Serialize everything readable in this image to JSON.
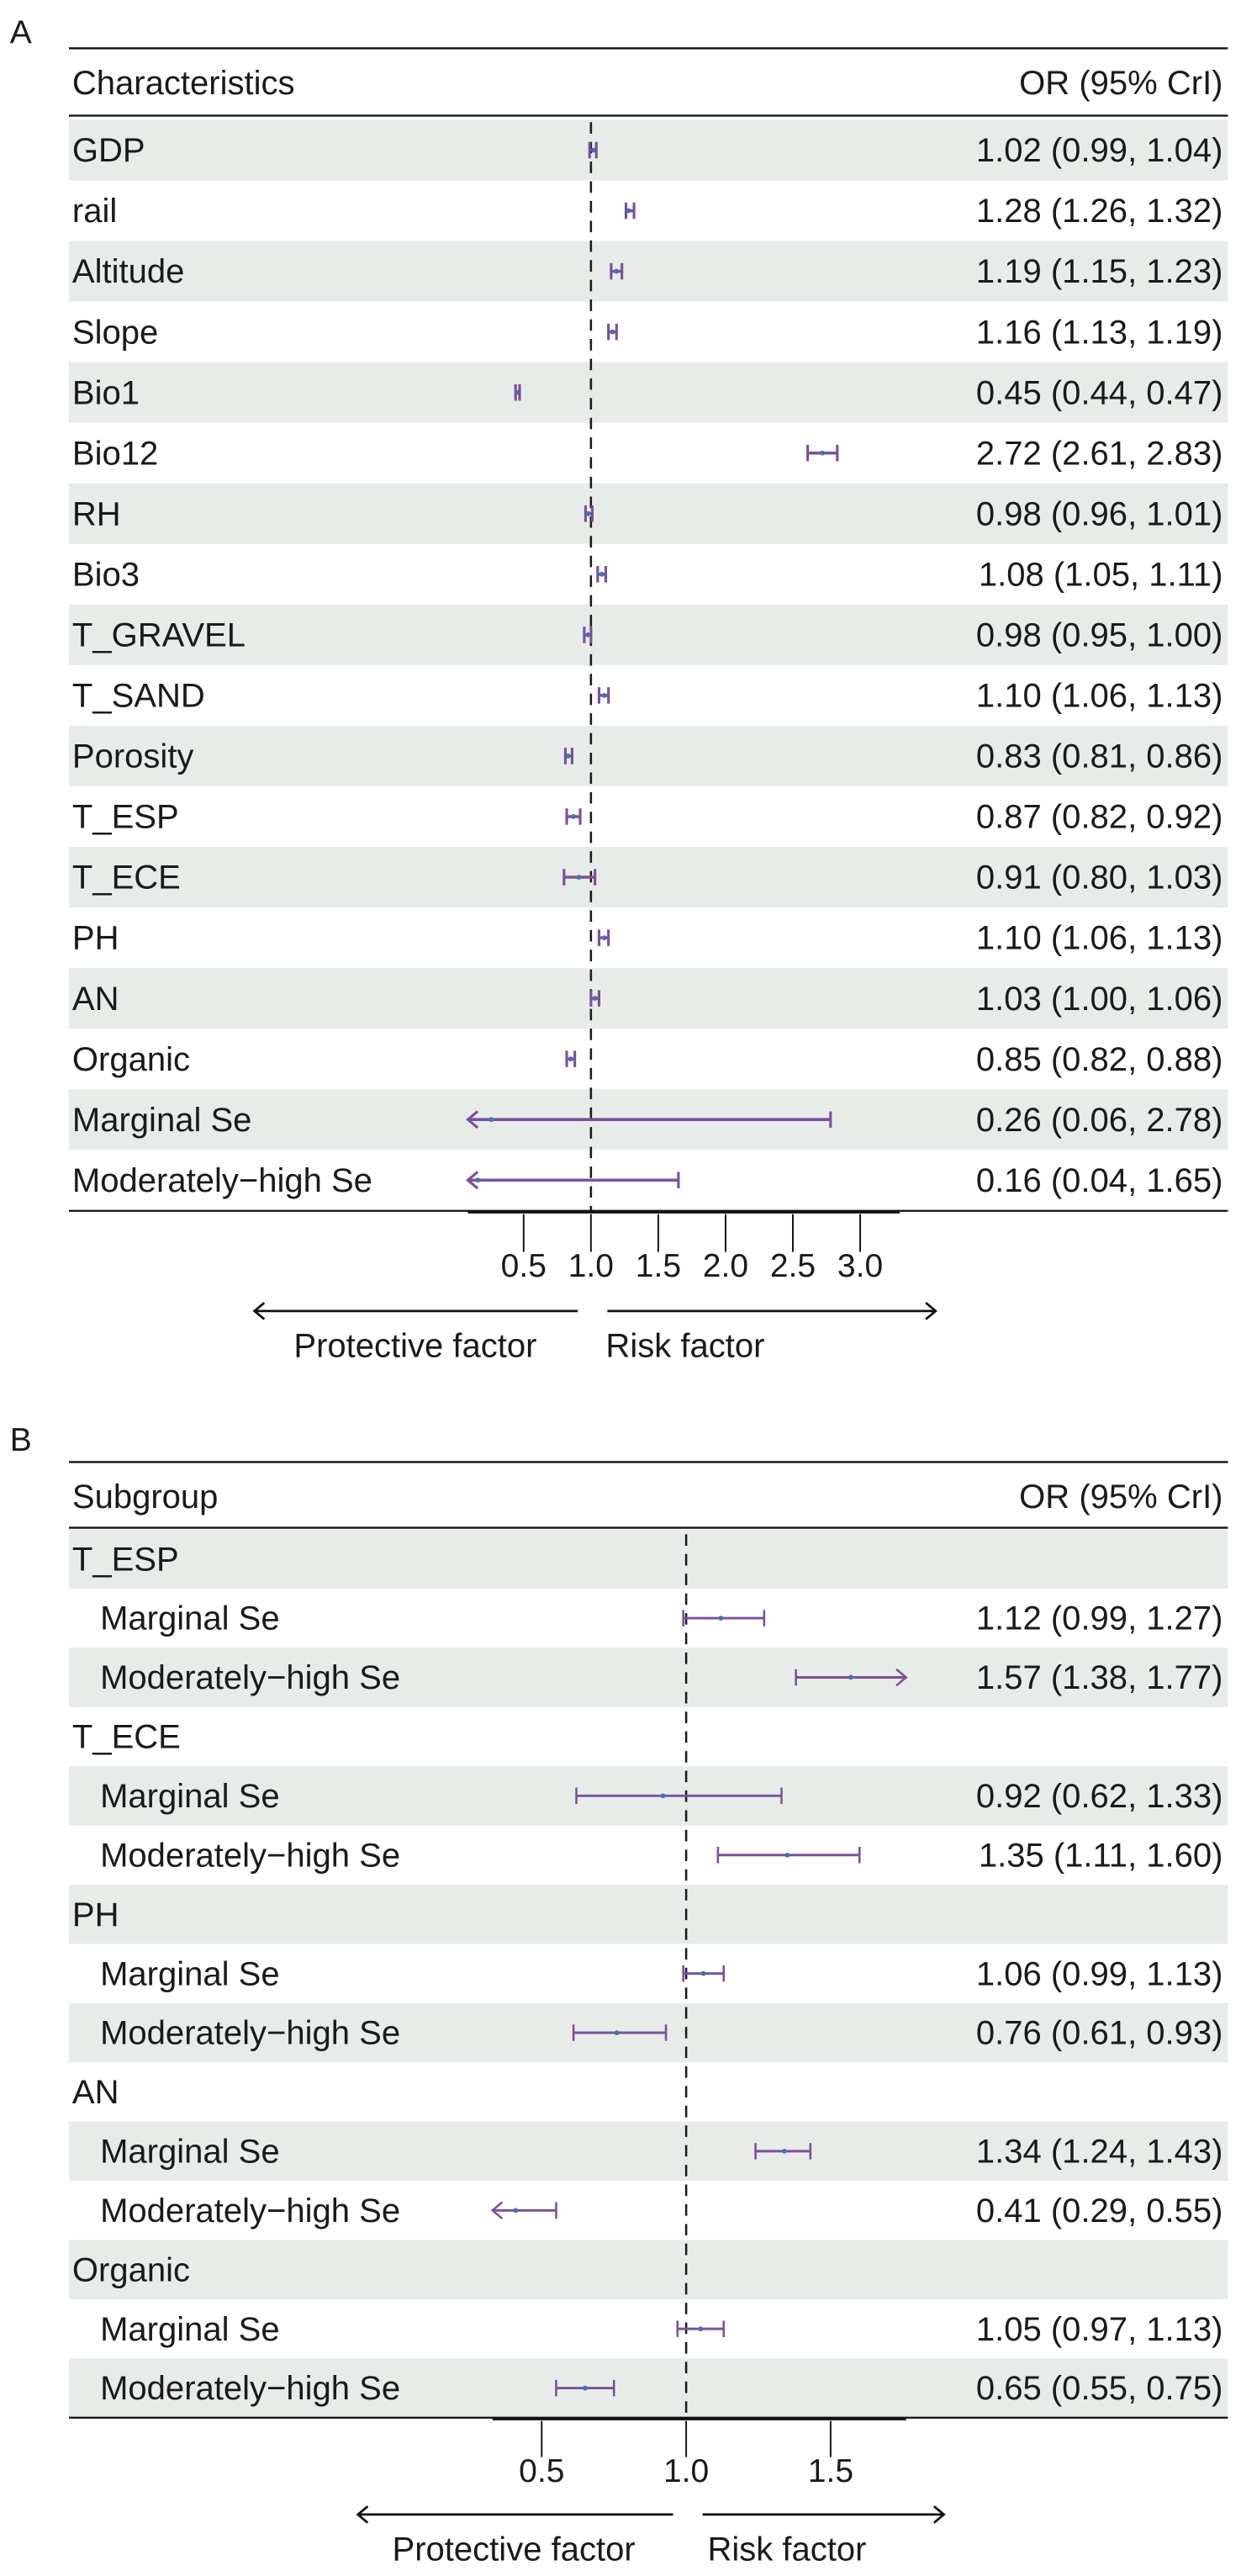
{
  "colors": {
    "ci": "#7b4f9e",
    "point": "#4a6fb0",
    "shade": "#e8ece9",
    "ref": "#1a1a1a"
  },
  "chart_data": [
    {
      "type": "forest",
      "panel": "A",
      "header_left": "Characteristics",
      "header_right": "OR (95% CrI)",
      "xlim": [
        0.085,
        3.29
      ],
      "ref_line": 1.0,
      "ticks": [
        "0.5",
        "1.0",
        "1.5",
        "2.0",
        "2.5",
        "3.0"
      ],
      "tick_values": [
        0.5,
        1.0,
        1.5,
        2.0,
        2.5,
        3.0
      ],
      "left_arrow_label": "Protective factor",
      "right_arrow_label": "Risk factor",
      "rows": [
        {
          "label": "GDP",
          "or": 1.02,
          "lo": 0.99,
          "hi": 1.04,
          "text": "1.02 (0.99, 1.04)"
        },
        {
          "label": "rail",
          "or": 1.28,
          "lo": 1.26,
          "hi": 1.32,
          "text": "1.28 (1.26, 1.32)"
        },
        {
          "label": "Altitude",
          "or": 1.19,
          "lo": 1.15,
          "hi": 1.23,
          "text": "1.19 (1.15, 1.23)"
        },
        {
          "label": "Slope",
          "or": 1.16,
          "lo": 1.13,
          "hi": 1.19,
          "text": "1.16 (1.13, 1.19)"
        },
        {
          "label": "Bio1",
          "or": 0.45,
          "lo": 0.44,
          "hi": 0.47,
          "text": "0.45 (0.44, 0.47)"
        },
        {
          "label": "Bio12",
          "or": 2.72,
          "lo": 2.61,
          "hi": 2.83,
          "text": "2.72 (2.61, 2.83)"
        },
        {
          "label": "RH",
          "or": 0.98,
          "lo": 0.96,
          "hi": 1.01,
          "text": "0.98 (0.96, 1.01)"
        },
        {
          "label": "Bio3",
          "or": 1.08,
          "lo": 1.05,
          "hi": 1.11,
          "text": "1.08 (1.05, 1.11)"
        },
        {
          "label": "T_GRAVEL",
          "or": 0.98,
          "lo": 0.95,
          "hi": 1.0,
          "text": "0.98 (0.95, 1.00)"
        },
        {
          "label": "T_SAND",
          "or": 1.1,
          "lo": 1.06,
          "hi": 1.13,
          "text": "1.10 (1.06, 1.13)"
        },
        {
          "label": "Porosity",
          "or": 0.83,
          "lo": 0.81,
          "hi": 0.86,
          "text": "0.83 (0.81, 0.86)"
        },
        {
          "label": "T_ESP",
          "or": 0.87,
          "lo": 0.82,
          "hi": 0.92,
          "text": "0.87 (0.82, 0.92)"
        },
        {
          "label": "T_ECE",
          "or": 0.91,
          "lo": 0.8,
          "hi": 1.03,
          "text": "0.91 (0.80, 1.03)"
        },
        {
          "label": "PH",
          "or": 1.1,
          "lo": 1.06,
          "hi": 1.13,
          "text": "1.10 (1.06, 1.13)"
        },
        {
          "label": "AN",
          "or": 1.03,
          "lo": 1.0,
          "hi": 1.06,
          "text": "1.03 (1.00, 1.06)"
        },
        {
          "label": "Organic",
          "or": 0.85,
          "lo": 0.82,
          "hi": 0.88,
          "text": "0.85 (0.82, 0.88)"
        },
        {
          "label": "Marginal Se",
          "or": 0.26,
          "lo": 0.06,
          "hi": 2.78,
          "text": "0.26 (0.06, 2.78)"
        },
        {
          "label": "Moderately−high  Se",
          "or": 0.16,
          "lo": 0.04,
          "hi": 1.65,
          "text": "0.16 (0.04, 1.65)"
        }
      ]
    },
    {
      "type": "forest",
      "panel": "B",
      "header_left": "Subgroup",
      "header_right": "OR (95% CrI)",
      "xlim": [
        0.33,
        1.76
      ],
      "ref_line": 1.0,
      "ticks": [
        "0.5",
        "1.0",
        "1.5"
      ],
      "tick_values": [
        0.5,
        1.0,
        1.5
      ],
      "left_arrow_label": "Protective factor",
      "right_arrow_label": "Risk factor",
      "rows": [
        {
          "label": "T_ESP",
          "group": true
        },
        {
          "label": "Marginal Se",
          "or": 1.12,
          "lo": 0.99,
          "hi": 1.27,
          "text": "1.12 (0.99, 1.27)"
        },
        {
          "label": "Moderately−high  Se",
          "or": 1.57,
          "lo": 1.38,
          "hi": 1.77,
          "text": "1.57 (1.38, 1.77)"
        },
        {
          "label": "T_ECE",
          "group": true
        },
        {
          "label": "Marginal Se",
          "or": 0.92,
          "lo": 0.62,
          "hi": 1.33,
          "text": "0.92 (0.62, 1.33)"
        },
        {
          "label": "Moderately−high  Se",
          "or": 1.35,
          "lo": 1.11,
          "hi": 1.6,
          "text": "1.35 (1.11, 1.60)"
        },
        {
          "label": "PH",
          "group": true
        },
        {
          "label": "Marginal Se",
          "or": 1.06,
          "lo": 0.99,
          "hi": 1.13,
          "text": "1.06 (0.99, 1.13)"
        },
        {
          "label": "Moderately−high  Se",
          "or": 0.76,
          "lo": 0.61,
          "hi": 0.93,
          "text": "0.76 (0.61, 0.93)"
        },
        {
          "label": "AN",
          "group": true
        },
        {
          "label": "Marginal Se",
          "or": 1.34,
          "lo": 1.24,
          "hi": 1.43,
          "text": "1.34 (1.24, 1.43)"
        },
        {
          "label": "Moderately−high  Se",
          "or": 0.41,
          "lo": 0.29,
          "hi": 0.55,
          "text": "0.41 (0.29, 0.55)"
        },
        {
          "label": "Organic",
          "group": true
        },
        {
          "label": "Marginal Se",
          "or": 1.05,
          "lo": 0.97,
          "hi": 1.13,
          "text": "1.05 (0.97, 1.13)"
        },
        {
          "label": "Moderately−high  Se",
          "or": 0.65,
          "lo": 0.55,
          "hi": 0.75,
          "text": "0.65 (0.55, 0.75)"
        }
      ]
    }
  ]
}
